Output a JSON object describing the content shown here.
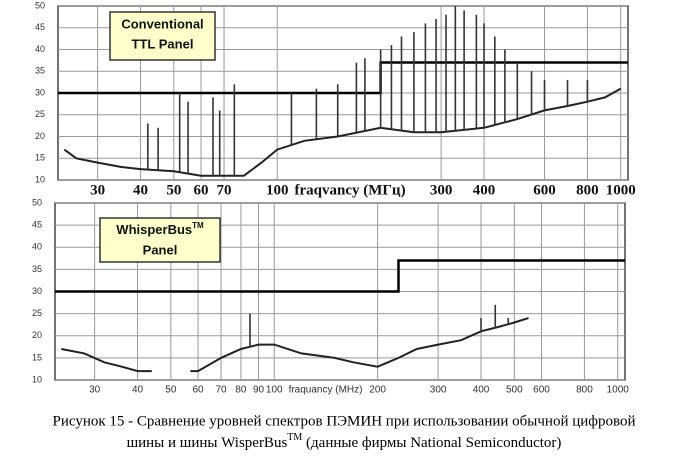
{
  "chart_data": [
    {
      "type": "line",
      "x_scale": "log",
      "grid": true,
      "xlim": [
        23,
        1050
      ],
      "ylim": [
        10,
        50
      ],
      "xticks": [
        30,
        40,
        50,
        60,
        70,
        100,
        300,
        400,
        600,
        800,
        1000
      ],
      "yticks": [
        10,
        15,
        20,
        25,
        30,
        35,
        40,
        45,
        50
      ],
      "x_label": "fraqvancy (МГц)",
      "annotation": [
        "Conventional",
        "TTL Panel"
      ],
      "series": [
        {
          "color": "#000000",
          "style": "step",
          "x": [
            23,
            200,
            200,
            1050
          ],
          "values": [
            30,
            30,
            37,
            37
          ]
        },
        {
          "color": "#222222",
          "style": "line",
          "x": [
            24,
            26,
            30,
            35,
            40,
            50,
            60,
            70,
            80,
            90,
            100,
            120,
            150,
            200,
            250,
            300,
            400,
            500,
            600,
            700,
            800,
            900,
            1000
          ],
          "values": [
            17,
            15,
            14,
            13,
            12.5,
            12,
            11,
            11,
            11,
            14,
            17,
            19,
            20,
            22,
            21,
            21,
            22,
            24,
            26,
            27,
            28,
            29,
            31
          ]
        },
        {
          "color": "#333333",
          "style": "spikes",
          "x": [
            42,
            45,
            52,
            55,
            65,
            68,
            75,
            110,
            130,
            150,
            170,
            180,
            200,
            215,
            230,
            250,
            270,
            290,
            310,
            330,
            350,
            380,
            400,
            430,
            460,
            500,
            550,
            600,
            700,
            800
          ],
          "values": [
            23,
            22,
            30,
            28,
            29,
            26,
            32,
            30,
            31,
            32,
            37,
            38,
            40,
            41,
            43,
            44,
            46,
            47,
            48,
            50,
            49,
            48,
            46,
            43,
            40,
            37,
            35,
            33,
            33,
            33
          ]
        }
      ]
    },
    {
      "type": "line",
      "x_scale": "log",
      "grid": true,
      "xlim": [
        23,
        1050
      ],
      "ylim": [
        10,
        50
      ],
      "xticks": [
        30,
        40,
        50,
        60,
        70,
        80,
        90,
        100,
        200,
        300,
        400,
        500,
        600,
        800,
        1000
      ],
      "yticks": [
        10,
        15,
        20,
        25,
        30,
        35,
        40,
        45,
        50
      ],
      "x_label": "fraquancy (MHz)",
      "annotation": [
        "WhisperBus",
        "Panel"
      ],
      "annotation_superscript": "TM",
      "series": [
        {
          "color": "#000000",
          "style": "step",
          "x": [
            23,
            230,
            230,
            1050
          ],
          "values": [
            30,
            30,
            37,
            37
          ]
        },
        {
          "color": "#222222",
          "style": "line",
          "x": [
            24,
            28,
            32,
            36,
            40,
            44,
            46,
            55,
            57,
            60,
            70,
            80,
            90,
            100,
            120,
            150,
            170,
            200,
            230,
            260,
            300,
            350,
            400,
            450,
            500,
            550
          ],
          "values": [
            17,
            16,
            14,
            13,
            12,
            12,
            null,
            null,
            12,
            12,
            15,
            17,
            18,
            18,
            16,
            15,
            14,
            13,
            15,
            17,
            18,
            19,
            21,
            22,
            23,
            24
          ]
        },
        {
          "color": "#333333",
          "style": "spikes",
          "x": [
            85,
            110,
            400,
            440,
            480
          ],
          "values": [
            25,
            17,
            24,
            27,
            24
          ]
        }
      ]
    }
  ],
  "caption": {
    "line1": "Рисунок 15 - Сравнение уровней спектров ПЭМИН при использовании обычной цифровой",
    "line2_before": "шины и шины WisperBus",
    "superscript": "TM",
    "line2_after": " (данные фирмы National Semiconductor)"
  }
}
